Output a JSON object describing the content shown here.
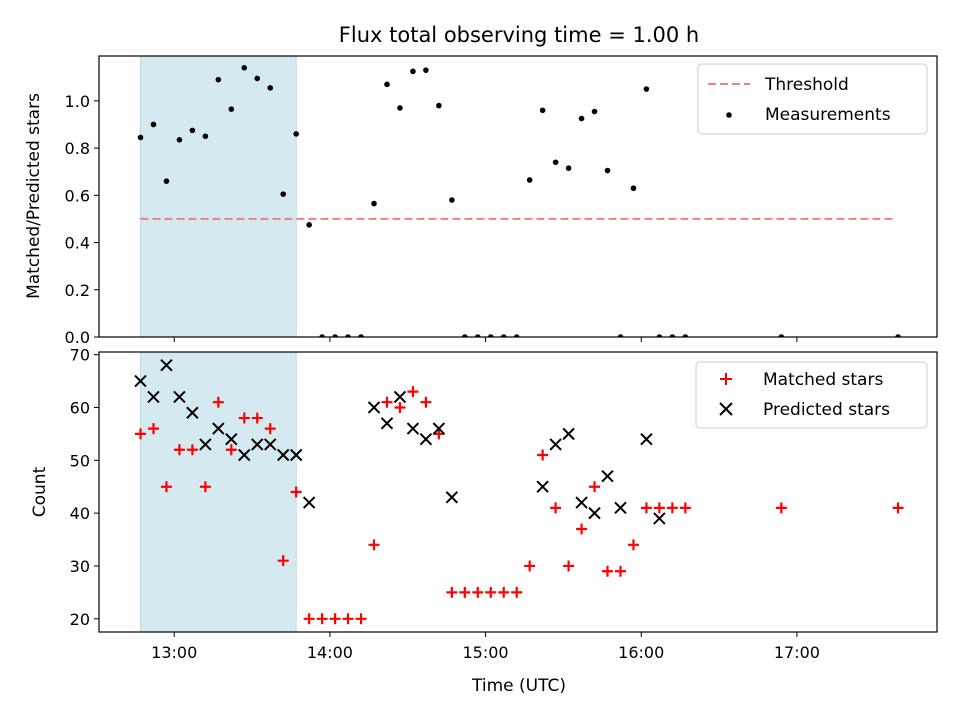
{
  "chart_data": [
    {
      "type": "scatter",
      "title": "Flux total observing time = 1.00 h",
      "ylabel": "Matched/Predicted stars",
      "xlabel": "",
      "x_range": [
        "12:31",
        "17:54"
      ],
      "ylim": [
        0,
        1.19
      ],
      "yticks": [
        "0.0",
        "0.2",
        "0.4",
        "0.6",
        "0.8",
        "1.0"
      ],
      "grid": false,
      "legend_position": "top-right",
      "highlight_span": [
        "12:47",
        "13:47"
      ],
      "highlight_color": "#d4eaf0",
      "threshold": {
        "name": "Threshold",
        "value": 0.5,
        "x": [
          "12:47",
          "17:37"
        ],
        "color": "#f08080"
      },
      "series": [
        {
          "name": "Measurements",
          "color": "#000000",
          "x": [
            "12:47",
            "12:52",
            "12:57",
            "13:02",
            "13:07",
            "13:12",
            "13:17",
            "13:22",
            "13:27",
            "13:32",
            "13:37",
            "13:42",
            "13:47",
            "13:52",
            "13:57",
            "14:02",
            "14:07",
            "14:12",
            "14:17",
            "14:22",
            "14:27",
            "14:32",
            "14:37",
            "14:42",
            "14:47",
            "14:52",
            "14:57",
            "15:02",
            "15:07",
            "15:12",
            "15:17",
            "15:22",
            "15:27",
            "15:32",
            "15:37",
            "15:42",
            "15:47",
            "15:52",
            "15:57",
            "16:02",
            "16:07",
            "16:12",
            "16:17",
            "16:54",
            "17:39"
          ],
          "values": [
            0.845,
            0.9,
            0.66,
            0.835,
            0.875,
            0.85,
            1.09,
            0.965,
            1.14,
            1.095,
            1.055,
            0.605,
            0.86,
            0.475,
            0,
            0,
            0,
            0,
            0.565,
            1.07,
            0.97,
            1.125,
            1.13,
            0.98,
            0.58,
            0,
            0,
            0,
            0,
            0,
            0.665,
            0.96,
            0.74,
            0.715,
            0.925,
            0.955,
            0.705,
            0,
            0.63,
            1.05,
            0,
            0,
            0,
            0,
            0
          ]
        }
      ]
    },
    {
      "type": "scatter",
      "title": "",
      "ylabel": "Count",
      "xlabel": "Time (UTC)",
      "xticks": [
        "13:00",
        "14:00",
        "15:00",
        "16:00",
        "17:00"
      ],
      "x_range": [
        "12:31",
        "17:54"
      ],
      "ylim": [
        17.5,
        70.5
      ],
      "yticks": [
        "20",
        "30",
        "40",
        "50",
        "60",
        "70"
      ],
      "grid": false,
      "legend_position": "top-right",
      "highlight_span": [
        "12:47",
        "13:47"
      ],
      "series": [
        {
          "name": "Matched stars",
          "marker": "plus",
          "color": "#ff0000",
          "x": [
            "12:47",
            "12:52",
            "12:57",
            "13:02",
            "13:07",
            "13:12",
            "13:17",
            "13:22",
            "13:27",
            "13:32",
            "13:37",
            "13:42",
            "13:47",
            "13:52",
            "13:57",
            "14:02",
            "14:07",
            "14:12",
            "14:17",
            "14:22",
            "14:27",
            "14:32",
            "14:37",
            "14:42",
            "14:47",
            "14:52",
            "14:57",
            "15:02",
            "15:07",
            "15:12",
            "15:17",
            "15:22",
            "15:27",
            "15:32",
            "15:37",
            "15:42",
            "15:47",
            "15:52",
            "15:57",
            "16:02",
            "16:07",
            "16:12",
            "16:17",
            "16:54",
            "17:39"
          ],
          "values": [
            55,
            56,
            45,
            52,
            52,
            45,
            61,
            52,
            58,
            58,
            56,
            31,
            44,
            20,
            20,
            20,
            20,
            20,
            34,
            61,
            60,
            63,
            61,
            55,
            25,
            25,
            25,
            25,
            25,
            25,
            30,
            51,
            41,
            30,
            37,
            45,
            29,
            29,
            34,
            41,
            41,
            41,
            41,
            41,
            41
          ]
        },
        {
          "name": "Predicted stars",
          "marker": "x",
          "color": "#000000",
          "x": [
            "12:47",
            "12:52",
            "12:57",
            "13:02",
            "13:07",
            "13:12",
            "13:17",
            "13:22",
            "13:27",
            "13:32",
            "13:37",
            "13:42",
            "13:47",
            "13:52",
            "14:17",
            "14:22",
            "14:27",
            "14:32",
            "14:37",
            "14:42",
            "14:47",
            "15:22",
            "15:27",
            "15:32",
            "15:37",
            "15:42",
            "15:47",
            "15:52",
            "16:02",
            "16:07"
          ],
          "values": [
            65,
            62,
            68,
            62,
            59,
            53,
            56,
            54,
            51,
            53,
            53,
            51,
            51,
            42,
            60,
            57,
            62,
            56,
            54,
            56,
            43,
            45,
            53,
            55,
            42,
            40,
            47,
            41,
            54,
            39
          ]
        }
      ]
    }
  ]
}
